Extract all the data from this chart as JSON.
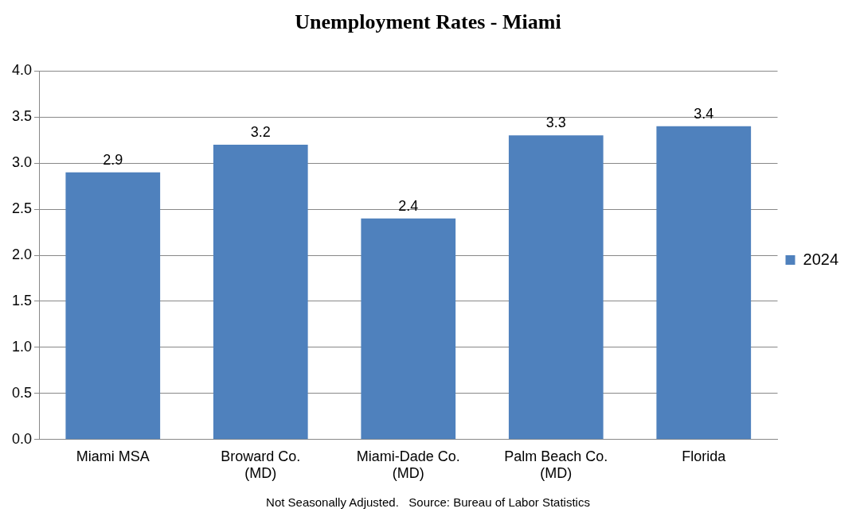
{
  "chart_data": {
    "type": "bar",
    "title": "Unemployment Rates - Miami",
    "categories": [
      "Miami MSA",
      "Broward Co.\n(MD)",
      "Miami-Dade Co.\n(MD)",
      "Palm Beach Co.\n(MD)",
      "Florida"
    ],
    "series": [
      {
        "name": "2024",
        "color": "#4f81bd",
        "values": [
          2.9,
          3.2,
          2.4,
          3.3,
          3.4
        ]
      }
    ],
    "ylim": [
      0,
      4
    ],
    "yticks": [
      {
        "value": 0,
        "label": "0.0"
      },
      {
        "value": 0.5,
        "label": "0.5"
      },
      {
        "value": 1,
        "label": "1.0"
      },
      {
        "value": 1.5,
        "label": "1.5"
      },
      {
        "value": 2,
        "label": "2.0"
      },
      {
        "value": 2.5,
        "label": "2.5"
      },
      {
        "value": 3,
        "label": "3.0"
      },
      {
        "value": 3.5,
        "label": "3.5"
      },
      {
        "value": 4,
        "label": "4.0"
      }
    ],
    "grid": "y",
    "legend": "right",
    "data_labels": true,
    "annotations": [
      "Not Seasonally Adjusted.   Source: Bureau of Labor Statistics"
    ]
  }
}
